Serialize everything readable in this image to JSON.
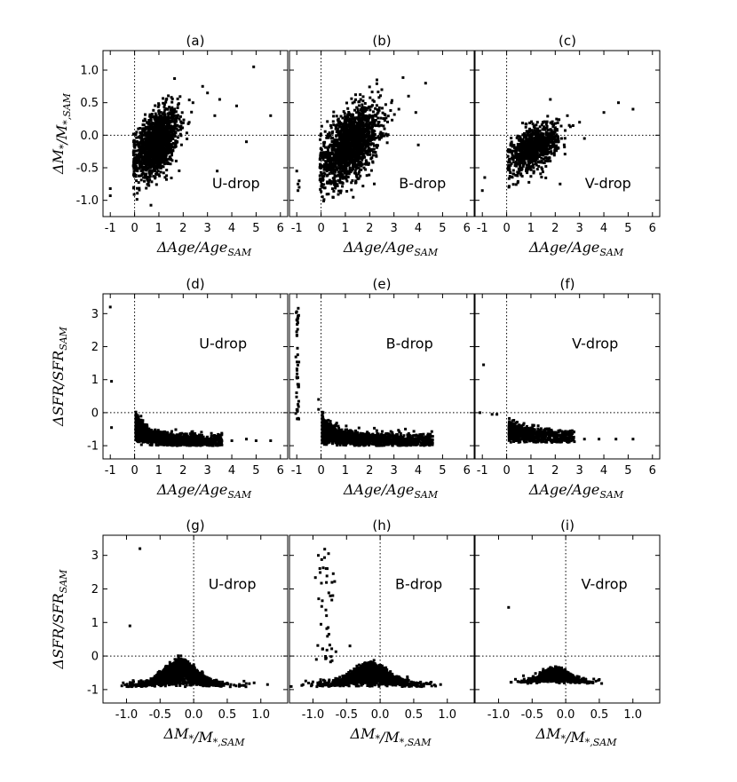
{
  "chart_data": [
    {
      "id": "a",
      "type": "scatter",
      "title": "(a)",
      "annotation": "U-drop",
      "xlim": [
        -1.3,
        6.3
      ],
      "ylim": [
        -1.25,
        1.3
      ],
      "xticks": [
        -1,
        0,
        1,
        2,
        3,
        4,
        5,
        6
      ],
      "yticks": [
        -1.0,
        -0.5,
        0.0,
        0.5,
        1.0
      ],
      "ref_x": 0,
      "ref_y": 0,
      "clusters": [
        {
          "x_mean": 0.9,
          "x_sd": 0.45,
          "y_mean": -0.12,
          "y_sd": 0.26,
          "r": 0.45,
          "n": 1500,
          "x_min": -0.05
        }
      ],
      "points": [
        [
          -1,
          -0.82
        ],
        [
          -1,
          -0.93
        ],
        [
          2.8,
          0.75
        ],
        [
          3.0,
          0.65
        ],
        [
          3.5,
          0.55
        ],
        [
          4.2,
          0.45
        ],
        [
          4.6,
          -0.1
        ],
        [
          4.9,
          1.05
        ],
        [
          5.6,
          0.3
        ],
        [
          3.4,
          -0.55
        ],
        [
          3.3,
          0.3
        ],
        [
          2.4,
          0.5
        ]
      ],
      "xlabel": "ΔAge/Age_SAM",
      "ylabel": "ΔM*/M*,SAM"
    },
    {
      "id": "b",
      "type": "scatter",
      "title": "(b)",
      "annotation": "B-drop",
      "xlim": [
        -1.3,
        6.3
      ],
      "ylim": [
        -1.25,
        1.3
      ],
      "xticks": [
        -1,
        0,
        1,
        2,
        3,
        4,
        5,
        6
      ],
      "yticks": [
        -1.0,
        -0.5,
        0.0,
        0.5,
        1.0
      ],
      "ref_x": 0,
      "ref_y": 0,
      "clusters": [
        {
          "x_mean": 1.2,
          "x_sd": 0.6,
          "y_mean": -0.15,
          "y_sd": 0.28,
          "r": 0.5,
          "n": 1700,
          "x_min": -0.05
        }
      ],
      "points": [
        [
          -0.95,
          -0.75
        ],
        [
          -0.95,
          -0.85
        ],
        [
          -0.9,
          -0.8
        ],
        [
          -0.9,
          -0.7
        ],
        [
          -1.0,
          -0.55
        ],
        [
          2.3,
          0.85
        ],
        [
          2.5,
          0.7
        ],
        [
          3.6,
          0.6
        ],
        [
          3.9,
          0.35
        ],
        [
          4.3,
          0.8
        ],
        [
          4.0,
          -0.15
        ],
        [
          3.2,
          0.4
        ],
        [
          2.9,
          0.5
        ]
      ],
      "xlabel": "ΔAge/Age_SAM",
      "ylabel": ""
    },
    {
      "id": "c",
      "type": "scatter",
      "title": "(c)",
      "annotation": "V-drop",
      "xlim": [
        -1.3,
        6.3
      ],
      "ylim": [
        -1.25,
        1.3
      ],
      "xticks": [
        -1,
        0,
        1,
        2,
        3,
        4,
        5,
        6
      ],
      "yticks": [
        -1.0,
        -0.5,
        0.0,
        0.5,
        1.0
      ],
      "ref_x": 0,
      "ref_y": 0,
      "clusters": [
        {
          "x_mean": 1.1,
          "x_sd": 0.5,
          "y_mean": -0.2,
          "y_sd": 0.18,
          "r": 0.5,
          "n": 900,
          "x_min": 0.05
        }
      ],
      "points": [
        [
          -1.0,
          -0.85
        ],
        [
          -0.9,
          -0.65
        ],
        [
          2.5,
          0.3
        ],
        [
          3.0,
          0.2
        ],
        [
          4.0,
          0.35
        ],
        [
          4.6,
          0.5
        ],
        [
          5.2,
          0.4
        ],
        [
          3.2,
          -0.05
        ],
        [
          2.2,
          -0.75
        ],
        [
          1.8,
          0.55
        ]
      ],
      "xlabel": "ΔAge/Age_SAM",
      "ylabel": ""
    },
    {
      "id": "d",
      "type": "scatter",
      "title": "(d)",
      "annotation": "U-drop",
      "xlim": [
        -1.3,
        6.3
      ],
      "ylim": [
        -1.4,
        3.6
      ],
      "xticks": [
        -1,
        0,
        1,
        2,
        3,
        4,
        5,
        6
      ],
      "yticks": [
        -1,
        0,
        1,
        2,
        3
      ],
      "ref_x": 0,
      "ref_y": 0,
      "clusters": [
        {
          "model": "decay",
          "x_min": 0.05,
          "x_max": 3.6,
          "y_base": -0.85,
          "amp": 0.7,
          "k": 1.6,
          "noise": 0.1,
          "n": 1400
        }
      ],
      "points": [
        [
          -1.0,
          3.2
        ],
        [
          -0.95,
          0.95
        ],
        [
          -0.95,
          -0.45
        ],
        [
          4.0,
          -0.85
        ],
        [
          4.6,
          -0.8
        ],
        [
          5.0,
          -0.85
        ],
        [
          5.6,
          -0.85
        ],
        [
          3.2,
          -0.9
        ]
      ],
      "xlabel": "ΔAge/Age_SAM",
      "ylabel": "ΔSFR/SFR_SAM"
    },
    {
      "id": "e",
      "type": "scatter",
      "title": "(e)",
      "annotation": "B-drop",
      "xlim": [
        -1.3,
        6.3
      ],
      "ylim": [
        -1.4,
        3.6
      ],
      "xticks": [
        -1,
        0,
        1,
        2,
        3,
        4,
        5,
        6
      ],
      "yticks": [
        -1,
        0,
        1,
        2,
        3
      ],
      "ref_x": 0,
      "ref_y": 0,
      "clusters": [
        {
          "model": "decay",
          "x_min": 0.05,
          "x_max": 4.6,
          "y_base": -0.85,
          "amp": 0.65,
          "k": 1.4,
          "noise": 0.11,
          "n": 1500
        },
        {
          "model": "column",
          "x": -0.97,
          "x_sd": 0.03,
          "y_min": -0.2,
          "y_max": 3.2,
          "n": 45
        }
      ],
      "points": [
        [
          -0.1,
          0.1
        ],
        [
          -0.1,
          0.4
        ],
        [
          4.2,
          -0.85
        ],
        [
          4.5,
          -0.85
        ]
      ],
      "xlabel": "ΔAge/Age_SAM",
      "ylabel": ""
    },
    {
      "id": "f",
      "type": "scatter",
      "title": "(f)",
      "annotation": "V-drop",
      "xlim": [
        -1.3,
        6.3
      ],
      "ylim": [
        -1.4,
        3.6
      ],
      "xticks": [
        -1,
        0,
        1,
        2,
        3,
        4,
        5,
        6
      ],
      "yticks": [
        -1,
        0,
        1,
        2,
        3
      ],
      "ref_x": 0,
      "ref_y": 0,
      "clusters": [
        {
          "model": "decay",
          "x_min": 0.1,
          "x_max": 2.8,
          "y_base": -0.75,
          "amp": 0.35,
          "k": 1.0,
          "noise": 0.11,
          "n": 800
        }
      ],
      "points": [
        [
          -0.95,
          1.45
        ],
        [
          -1.1,
          0.0
        ],
        [
          -0.6,
          -0.05
        ],
        [
          -0.4,
          -0.05
        ],
        [
          3.2,
          -0.8
        ],
        [
          3.8,
          -0.8
        ],
        [
          4.5,
          -0.8
        ],
        [
          5.2,
          -0.8
        ]
      ],
      "xlabel": "ΔAge/Age_SAM",
      "ylabel": ""
    },
    {
      "id": "g",
      "type": "scatter",
      "title": "(g)",
      "annotation": "U-drop",
      "xlim": [
        -1.35,
        1.4
      ],
      "ylim": [
        -1.4,
        3.6
      ],
      "xticks": [
        -1.0,
        -0.5,
        0.0,
        0.5,
        1.0
      ],
      "yticks": [
        -1,
        0,
        1,
        2,
        3
      ],
      "ref_x": 0,
      "ref_y": 0,
      "clusters": [
        {
          "model": "hump",
          "x_mean": -0.2,
          "x_sd": 0.3,
          "y_base": -0.92,
          "amp": 0.75,
          "w": 0.33,
          "noise": 0.12,
          "n": 1500
        }
      ],
      "points": [
        [
          -0.8,
          3.2
        ],
        [
          -0.95,
          0.9
        ],
        [
          0.75,
          -0.75
        ],
        [
          0.9,
          -0.8
        ],
        [
          1.1,
          -0.85
        ]
      ],
      "xlabel": "ΔM*/M*,SAM",
      "ylabel": "ΔSFR/SFR_SAM"
    },
    {
      "id": "h",
      "type": "scatter",
      "title": "(h)",
      "annotation": "B-drop",
      "xlim": [
        -1.35,
        1.4
      ],
      "ylim": [
        -1.4,
        3.6
      ],
      "xticks": [
        -1.0,
        -0.5,
        0.0,
        0.5,
        1.0
      ],
      "yticks": [
        -1,
        0,
        1,
        2,
        3
      ],
      "ref_x": 0,
      "ref_y": 0,
      "clusters": [
        {
          "model": "hump",
          "x_mean": -0.15,
          "x_sd": 0.32,
          "y_base": -0.92,
          "amp": 0.65,
          "w": 0.36,
          "noise": 0.12,
          "n": 1500
        },
        {
          "model": "column",
          "x": -0.78,
          "x_sd": 0.07,
          "y_min": -0.2,
          "y_max": 3.2,
          "n": 45
        }
      ],
      "points": [
        [
          0.75,
          -0.8
        ],
        [
          0.9,
          -0.85
        ],
        [
          -0.45,
          0.3
        ],
        [
          -0.95,
          -0.1
        ]
      ],
      "xlabel": "ΔM*/M*,SAM",
      "ylabel": ""
    },
    {
      "id": "i",
      "type": "scatter",
      "title": "(i)",
      "annotation": "V-drop",
      "xlim": [
        -1.35,
        1.4
      ],
      "ylim": [
        -1.4,
        3.6
      ],
      "xticks": [
        -1.0,
        -0.5,
        0.0,
        0.5,
        1.0
      ],
      "yticks": [
        -1,
        0,
        1,
        2,
        3
      ],
      "ref_x": 0,
      "ref_y": 0,
      "clusters": [
        {
          "model": "hump",
          "x_mean": -0.15,
          "x_sd": 0.22,
          "y_base": -0.82,
          "amp": 0.4,
          "w": 0.28,
          "noise": 0.1,
          "n": 800
        }
      ],
      "points": [
        [
          -0.85,
          1.45
        ],
        [
          0.3,
          -0.7
        ],
        [
          0.45,
          -0.75
        ],
        [
          0.5,
          -0.7
        ]
      ],
      "xlabel": "ΔM*/M*,SAM",
      "ylabel": ""
    }
  ]
}
